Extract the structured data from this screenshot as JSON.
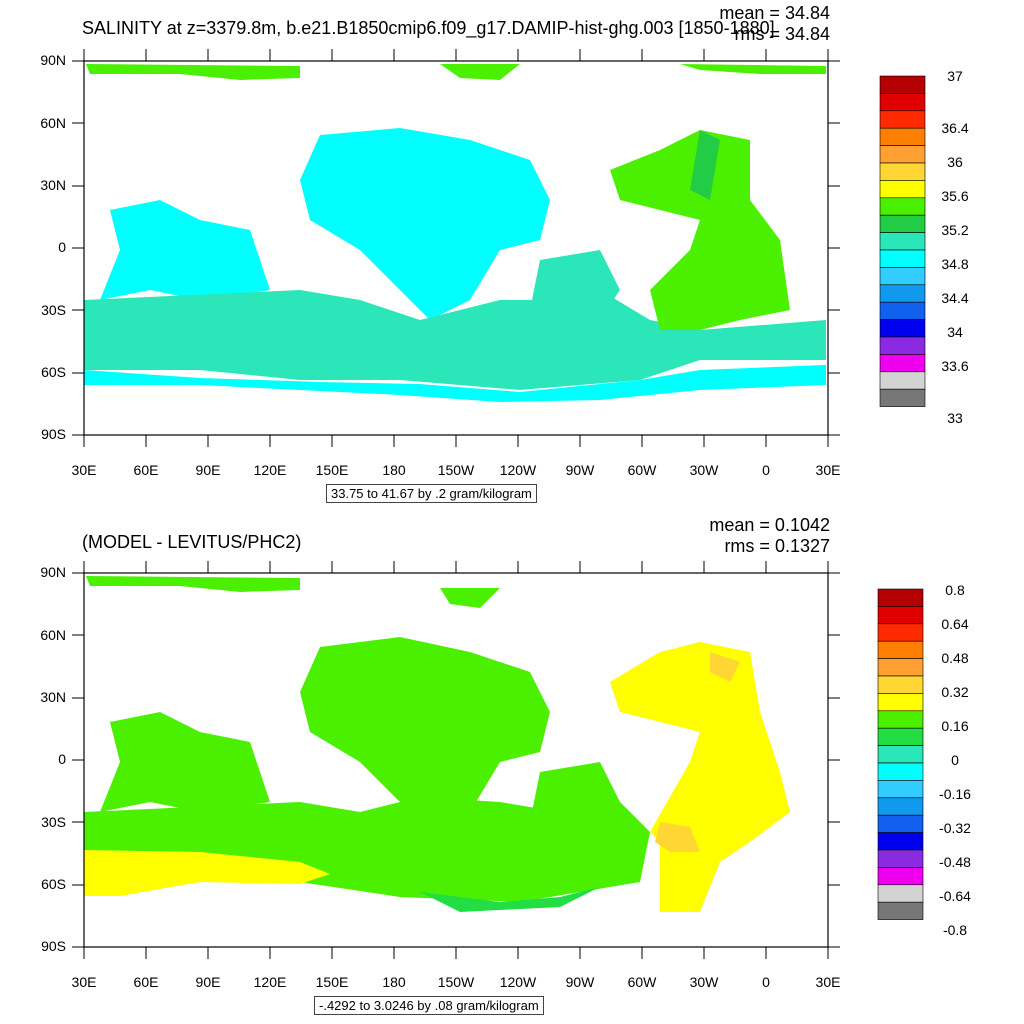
{
  "chart_data": [
    {
      "type": "heatmap",
      "title": "SALINITY at z=3379.8m, b.e21.B1850cmip6.f09_g17.DAMIP-hist-ghg.003 [1850-1880]",
      "mean_label": "mean = 34.84",
      "rms_label": "rms = 34.84",
      "lat_ticks": [
        "90N",
        "60N",
        "30N",
        "0",
        "30S",
        "60S",
        "90S"
      ],
      "lon_ticks": [
        "30E",
        "60E",
        "90E",
        "120E",
        "150E",
        "180",
        "150W",
        "120W",
        "90W",
        "60W",
        "30W",
        "0",
        "30E"
      ],
      "contour_info": "33.75 to 41.67 by .2 gram/kilogram",
      "colorbar_labels": [
        "37",
        "36.4",
        "36",
        "35.6",
        "35.2",
        "34.8",
        "34.4",
        "34",
        "33.6",
        "33"
      ],
      "colorbar_colors": [
        "#b40000",
        "#e00000",
        "#ff2a00",
        "#ff7f00",
        "#ffa033",
        "#ffd633",
        "#ffff00",
        "#4bf000",
        "#22cc44",
        "#2ae6b8",
        "#00ffff",
        "#33ccff",
        "#1199ee",
        "#1160ee",
        "#0000ee",
        "#8a2be2",
        "#ee00ee",
        "#d3d3d3",
        "#777777"
      ]
    },
    {
      "type": "heatmap",
      "title": "(MODEL - LEVITUS/PHC2)",
      "mean_label": "mean = 0.1042",
      "rms_label": "rms = 0.1327",
      "lat_ticks": [
        "90N",
        "60N",
        "30N",
        "0",
        "30S",
        "60S",
        "90S"
      ],
      "lon_ticks": [
        "30E",
        "60E",
        "90E",
        "120E",
        "150E",
        "180",
        "150W",
        "120W",
        "90W",
        "60W",
        "30W",
        "0",
        "30E"
      ],
      "contour_info": "-.4292 to 3.0246 by .08 gram/kilogram",
      "colorbar_labels": [
        "0.8",
        "0.64",
        "0.48",
        "0.32",
        "0.16",
        "0",
        "-0.16",
        "-0.32",
        "-0.48",
        "-0.64",
        "-0.8"
      ],
      "colorbar_colors": [
        "#b40000",
        "#e00000",
        "#ff2a00",
        "#ff7f00",
        "#ffa033",
        "#ffd633",
        "#ffff00",
        "#4bf000",
        "#22dd44",
        "#2ae6b8",
        "#00ffff",
        "#33ccff",
        "#1199ee",
        "#1160ee",
        "#0000ee",
        "#8a2be2",
        "#ee00ee",
        "#d3d3d3",
        "#777777"
      ]
    }
  ],
  "colors": {
    "green": "#4bf000",
    "dark_green": "#22cc44",
    "aqua": "#2ae6b8",
    "cyan": "#00ffff",
    "yellow": "#ffff00",
    "gold": "#ffd633",
    "orange": "#ffa033"
  }
}
